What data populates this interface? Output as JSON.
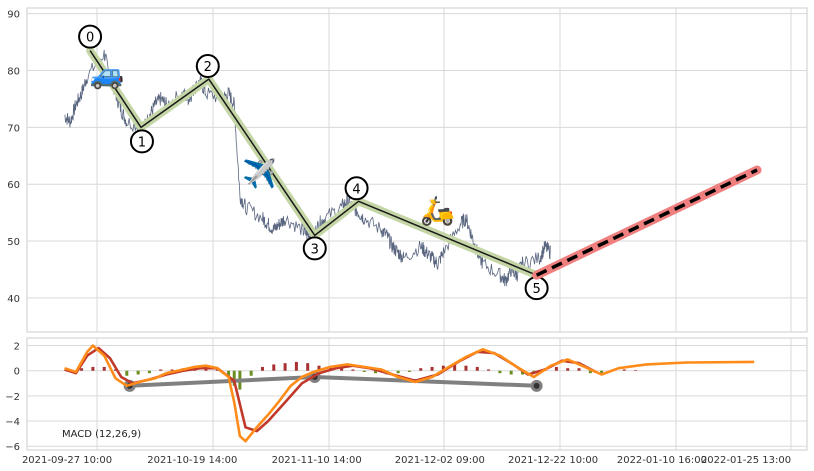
{
  "chart_data": [
    {
      "type": "line",
      "panel": "price",
      "title": "",
      "ylim": [
        34,
        91
      ],
      "y_ticks": [
        "90",
        "80",
        "70",
        "60",
        "50",
        "40"
      ],
      "grid": true,
      "price_path": [
        [
          "2021-09-27",
          72
        ],
        [
          "2021-09-28",
          71
        ],
        [
          "2021-09-29",
          74
        ],
        [
          "2021-09-30",
          76
        ],
        [
          "2021-10-01",
          79
        ],
        [
          "2021-10-04",
          83
        ],
        [
          "2021-10-05",
          79
        ],
        [
          "2021-10-06",
          76
        ],
        [
          "2021-10-07",
          73
        ],
        [
          "2021-10-08",
          71
        ],
        [
          "2021-10-11",
          70
        ],
        [
          "2021-10-12",
          72
        ],
        [
          "2021-10-13",
          74
        ],
        [
          "2021-10-14",
          75
        ],
        [
          "2021-10-15",
          74
        ],
        [
          "2021-10-18",
          76
        ],
        [
          "2021-10-19",
          75
        ],
        [
          "2021-10-20",
          77
        ],
        [
          "2021-10-21",
          78
        ],
        [
          "2021-10-22",
          76
        ],
        [
          "2021-10-25",
          75
        ],
        [
          "2021-10-26",
          76
        ],
        [
          "2021-10-27",
          74
        ],
        [
          "2021-10-28",
          58
        ],
        [
          "2021-10-29",
          56
        ],
        [
          "2021-11-01",
          54
        ],
        [
          "2021-11-02",
          53
        ],
        [
          "2021-11-03",
          52
        ],
        [
          "2021-11-04",
          53
        ],
        [
          "2021-11-05",
          54
        ],
        [
          "2021-11-08",
          52
        ],
        [
          "2021-11-09",
          51
        ],
        [
          "2021-11-10",
          51
        ],
        [
          "2021-11-11",
          53
        ],
        [
          "2021-11-12",
          54
        ],
        [
          "2021-11-15",
          56
        ],
        [
          "2021-11-16",
          57
        ],
        [
          "2021-11-17",
          56
        ],
        [
          "2021-11-18",
          55
        ],
        [
          "2021-11-19",
          54
        ],
        [
          "2021-11-22",
          52
        ],
        [
          "2021-11-23",
          51
        ],
        [
          "2021-11-24",
          49
        ],
        [
          "2021-11-25",
          48
        ],
        [
          "2021-11-26",
          47
        ],
        [
          "2021-11-29",
          49
        ],
        [
          "2021-11-30",
          48
        ],
        [
          "2021-12-01",
          47
        ],
        [
          "2021-12-02",
          46
        ],
        [
          "2021-12-03",
          48
        ],
        [
          "2021-12-06",
          53
        ],
        [
          "2021-12-07",
          54
        ],
        [
          "2021-12-08",
          51
        ],
        [
          "2021-12-09",
          48
        ],
        [
          "2021-12-10",
          46
        ],
        [
          "2021-12-13",
          44
        ],
        [
          "2021-12-14",
          43
        ],
        [
          "2021-12-15",
          45
        ],
        [
          "2021-12-16",
          44
        ],
        [
          "2021-12-17",
          46
        ],
        [
          "2021-12-20",
          47
        ],
        [
          "2021-12-21",
          49
        ],
        [
          "2021-12-22",
          48
        ]
      ],
      "waves": [
        {
          "label": "0",
          "x": "2021-10-01 12:00",
          "y": 83.5
        },
        {
          "label": "1",
          "x": "2021-10-10 12:00",
          "y": 70
        },
        {
          "label": "2",
          "x": "2021-10-22 12:00",
          "y": 78.5
        },
        {
          "label": "3",
          "x": "2021-11-10 06:00",
          "y": 51
        },
        {
          "label": "4",
          "x": "2021-11-18 00:00",
          "y": 57
        },
        {
          "label": "5",
          "x": "2021-12-19 12:00",
          "y": 44
        }
      ],
      "projection": {
        "from": [
          "2021-12-19 12:00",
          44
        ],
        "to": [
          "2022-01-27 12:00",
          62.5
        ]
      },
      "icons": [
        {
          "name": "car-icon",
          "glyph": "🚙",
          "x": "2021-10-04 12:00",
          "y": 79.5
        },
        {
          "name": "airplane-icon",
          "glyph": "✈️",
          "x": "2021-10-31 12:00",
          "y": 62
        },
        {
          "name": "scooter-icon",
          "glyph": "🛵",
          "x": "2021-12-02 00:00",
          "y": 55.5
        }
      ],
      "colors": {
        "price": "#5a6680",
        "wave_halo": "#c5d6a6",
        "wave_line": "#1a1a1a",
        "projection_halo": "#f08080",
        "projection_line": "#000000"
      }
    },
    {
      "type": "line",
      "panel": "macd",
      "label": "MACD (12,26,9)",
      "ylim": [
        -6.3,
        2.6
      ],
      "y_ticks": [
        "2",
        "0",
        "−2",
        "−4",
        "−6"
      ],
      "grid": true,
      "x_tick_labels": [
        "2021-09-27 10:00",
        "2021-10-19 14:00",
        "2021-11-10 14:00",
        "2021-12-02 09:00",
        "2021-12-22 10:00",
        "2022-01-10 16:00",
        "2022-01-25 13:00"
      ],
      "macd_line": [
        [
          "2021-09-27",
          0.2
        ],
        [
          "2021-09-29",
          -0.1
        ],
        [
          "2021-10-01",
          1.5
        ],
        [
          "2021-10-02",
          2.0
        ],
        [
          "2021-10-04",
          1.2
        ],
        [
          "2021-10-06",
          -0.6
        ],
        [
          "2021-10-08",
          -1.2
        ],
        [
          "2021-10-11",
          -0.8
        ],
        [
          "2021-10-13",
          -0.6
        ],
        [
          "2021-10-15",
          -0.2
        ],
        [
          "2021-10-18",
          0.1
        ],
        [
          "2021-10-20",
          0.3
        ],
        [
          "2021-10-22",
          0.4
        ],
        [
          "2021-10-24",
          0.2
        ],
        [
          "2021-10-26",
          -0.5
        ],
        [
          "2021-10-27",
          -2.5
        ],
        [
          "2021-10-28",
          -5.2
        ],
        [
          "2021-10-29",
          -5.6
        ],
        [
          "2021-10-31",
          -4.5
        ],
        [
          "2021-11-02",
          -3.5
        ],
        [
          "2021-11-04",
          -2.4
        ],
        [
          "2021-11-06",
          -1.2
        ],
        [
          "2021-11-08",
          -0.5
        ],
        [
          "2021-11-10",
          -0.1
        ],
        [
          "2021-11-13",
          0.3
        ],
        [
          "2021-11-16",
          0.5
        ],
        [
          "2021-11-19",
          0.3
        ],
        [
          "2021-11-22",
          0.1
        ],
        [
          "2021-11-25",
          -0.5
        ],
        [
          "2021-11-28",
          -0.9
        ],
        [
          "2021-12-01",
          -0.5
        ],
        [
          "2021-12-04",
          0.3
        ],
        [
          "2021-12-07",
          1.1
        ],
        [
          "2021-12-10",
          1.7
        ],
        [
          "2021-12-13",
          1.2
        ],
        [
          "2021-12-16",
          0.3
        ],
        [
          "2021-12-19",
          -0.5
        ],
        [
          "2021-12-22",
          0.4
        ],
        [
          "2021-12-25",
          0.9
        ],
        [
          "2021-12-28",
          0.3
        ],
        [
          "2021-12-31",
          -0.3
        ],
        [
          "2022-01-03",
          0.2
        ],
        [
          "2022-01-08",
          0.5
        ],
        [
          "2022-01-15",
          0.65
        ],
        [
          "2022-01-27",
          0.7
        ]
      ],
      "signal_line": [
        [
          "2021-09-27",
          0.1
        ],
        [
          "2021-09-29",
          -0.2
        ],
        [
          "2021-10-01",
          1.2
        ],
        [
          "2021-10-03",
          1.8
        ],
        [
          "2021-10-05",
          1.0
        ],
        [
          "2021-10-07",
          -0.5
        ],
        [
          "2021-10-09",
          -1.0
        ],
        [
          "2021-10-12",
          -0.7
        ],
        [
          "2021-10-15",
          -0.3
        ],
        [
          "2021-10-18",
          0.0
        ],
        [
          "2021-10-21",
          0.2
        ],
        [
          "2021-10-24",
          0.2
        ],
        [
          "2021-10-27",
          -0.8
        ],
        [
          "2021-10-29",
          -4.5
        ],
        [
          "2021-10-31",
          -4.8
        ],
        [
          "2021-11-02",
          -4.0
        ],
        [
          "2021-11-05",
          -2.5
        ],
        [
          "2021-11-08",
          -1.0
        ],
        [
          "2021-11-11",
          -0.2
        ],
        [
          "2021-11-14",
          0.2
        ],
        [
          "2021-11-17",
          0.4
        ],
        [
          "2021-11-20",
          0.2
        ],
        [
          "2021-11-24",
          -0.3
        ],
        [
          "2021-11-28",
          -0.8
        ],
        [
          "2021-12-02",
          -0.3
        ],
        [
          "2021-12-06",
          0.8
        ],
        [
          "2021-12-09",
          1.5
        ],
        [
          "2021-12-12",
          1.4
        ],
        [
          "2021-12-15",
          0.6
        ],
        [
          "2021-12-18",
          -0.3
        ],
        [
          "2021-12-21",
          0.1
        ],
        [
          "2021-12-24",
          0.8
        ],
        [
          "2021-12-27",
          0.6
        ],
        [
          "2021-12-30",
          -0.1
        ]
      ],
      "histogram": [
        [
          "2021-09-28",
          0.1
        ],
        [
          "2021-09-30",
          0.2
        ],
        [
          "2021-10-02",
          0.3
        ],
        [
          "2021-10-04",
          0.3
        ],
        [
          "2021-10-06",
          0.1
        ],
        [
          "2021-10-08",
          -0.4
        ],
        [
          "2021-10-10",
          -0.3
        ],
        [
          "2021-10-12",
          -0.2
        ],
        [
          "2021-10-14",
          0.1
        ],
        [
          "2021-10-16",
          0.1
        ],
        [
          "2021-10-18",
          0.2
        ],
        [
          "2021-10-20",
          0.3
        ],
        [
          "2021-10-22",
          0.3
        ],
        [
          "2021-10-24",
          0.2
        ],
        [
          "2021-10-26",
          -0.4
        ],
        [
          "2021-10-27",
          -1.2
        ],
        [
          "2021-10-28",
          -1.5
        ],
        [
          "2021-10-30",
          -0.4
        ],
        [
          "2021-11-01",
          0.3
        ],
        [
          "2021-11-03",
          0.5
        ],
        [
          "2021-11-05",
          0.6
        ],
        [
          "2021-11-07",
          0.7
        ],
        [
          "2021-11-09",
          0.6
        ],
        [
          "2021-11-11",
          0.4
        ],
        [
          "2021-11-13",
          0.3
        ],
        [
          "2021-11-15",
          0.2
        ],
        [
          "2021-11-17",
          0.1
        ],
        [
          "2021-11-19",
          -0.1
        ],
        [
          "2021-11-21",
          -0.2
        ],
        [
          "2021-11-23",
          -0.3
        ],
        [
          "2021-11-25",
          -0.2
        ],
        [
          "2021-11-27",
          -0.1
        ],
        [
          "2021-11-29",
          0.2
        ],
        [
          "2021-12-01",
          0.3
        ],
        [
          "2021-12-03",
          0.4
        ],
        [
          "2021-12-05",
          0.5
        ],
        [
          "2021-12-07",
          0.4
        ],
        [
          "2021-12-09",
          0.3
        ],
        [
          "2021-12-11",
          0.1
        ],
        [
          "2021-12-13",
          -0.2
        ],
        [
          "2021-12-15",
          -0.3
        ],
        [
          "2021-12-17",
          -0.3
        ],
        [
          "2021-12-19",
          -0.2
        ],
        [
          "2021-12-21",
          0.2
        ],
        [
          "2021-12-23",
          0.3
        ],
        [
          "2021-12-25",
          0.2
        ],
        [
          "2021-12-27",
          0.2
        ],
        [
          "2021-12-29",
          -0.2
        ],
        [
          "2021-12-31",
          -0.2
        ],
        [
          "2022-01-02",
          0.1
        ],
        [
          "2022-01-04",
          0.1
        ],
        [
          "2022-01-06",
          0.05
        ]
      ],
      "divergence": [
        {
          "x": "2021-10-08 12:00",
          "y": -1.2
        },
        {
          "x": "2021-11-10 06:00",
          "y": -0.5
        },
        {
          "x": "2021-12-19 12:00",
          "y": -1.2
        }
      ],
      "colors": {
        "macd": "#ff8c1a",
        "signal": "#c0392b",
        "hist_positive": "#a83232",
        "hist_negative": "#6b8e23",
        "divergence": "#808080"
      }
    }
  ]
}
